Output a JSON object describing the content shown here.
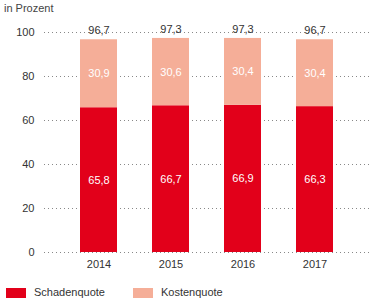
{
  "chart_data": {
    "type": "bar",
    "stacked": true,
    "data_labels": true,
    "grid": true,
    "legend": "bottom",
    "y_label": "in Prozent",
    "categories": [
      "2014",
      "2015",
      "2016",
      "2017"
    ],
    "series": [
      {
        "name": "Schadenquote",
        "color": "#e2001a",
        "values": [
          65.8,
          66.7,
          66.9,
          66.3
        ],
        "value_labels": [
          "65,8",
          "66,7",
          "66,9",
          "66,3"
        ]
      },
      {
        "name": "Kostenquote",
        "color": "#f5ae98",
        "values": [
          30.9,
          30.6,
          30.4,
          30.4
        ],
        "value_labels": [
          "30,9",
          "30,6",
          "30,4",
          "30,4"
        ]
      }
    ],
    "totals": [
      96.7,
      97.3,
      97.3,
      96.7
    ],
    "total_labels": [
      "96,7",
      "97,3",
      "97,3",
      "96,7"
    ],
    "ylim": [
      0,
      100
    ],
    "yticks": [
      0,
      20,
      40,
      60,
      80,
      100
    ]
  }
}
